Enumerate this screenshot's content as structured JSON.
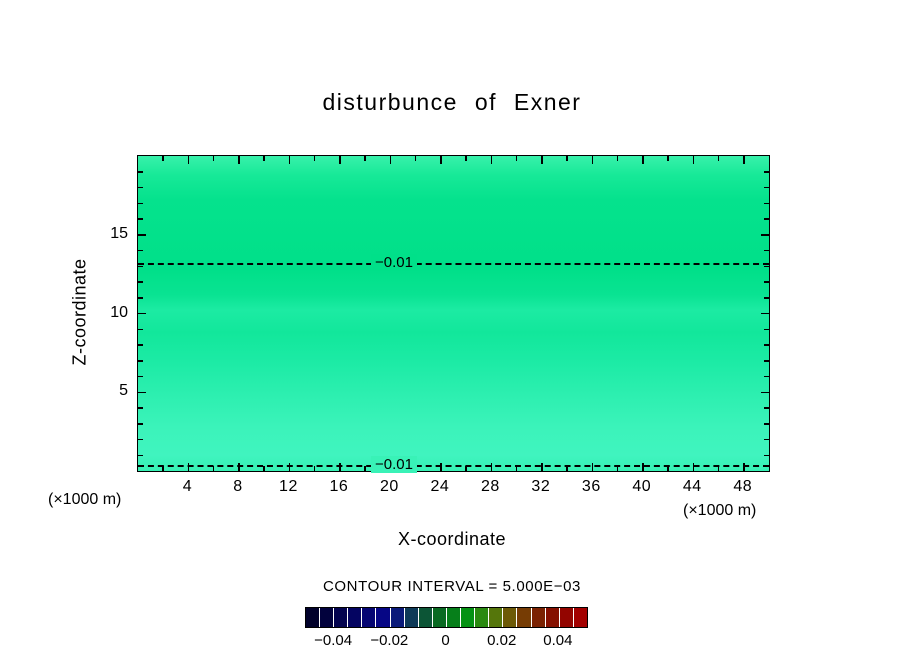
{
  "title": "disturbunce of Exner",
  "plot": {
    "x_axis": {
      "label": "X-coordinate",
      "unit": "(×1000 m)",
      "major_ticks": [
        4,
        8,
        12,
        16,
        20,
        24,
        28,
        32,
        36,
        40,
        44,
        48
      ],
      "minor_step": 2,
      "range": [
        0,
        50
      ]
    },
    "y_axis": {
      "label": "Z-coordinate",
      "unit": "(×1000 m)",
      "major_ticks": [
        5,
        10,
        15
      ],
      "minor_step": 1,
      "range": [
        0,
        20
      ]
    },
    "contour_lines": [
      {
        "label": "−0.01",
        "z": 13.2
      },
      {
        "label": "−0.01",
        "z": 0.4
      }
    ]
  },
  "footer": {
    "contour_interval_text": "CONTOUR INTERVAL = 5.000E−03"
  },
  "colorbar": {
    "tick_labels": [
      "−0.04",
      "−0.02",
      "0",
      "0.02",
      "0.04"
    ],
    "tick_values": [
      -0.04,
      -0.02,
      0,
      0.02,
      0.04
    ],
    "range": [
      -0.05,
      0.05
    ],
    "cell_colors": [
      "#01012b",
      "#02023d",
      "#03034f",
      "#040461",
      "#050573",
      "#060685",
      "#0a1a7a",
      "#0e3a58",
      "#0c5536",
      "#096a22",
      "#067f1a",
      "#049213",
      "#2a8a10",
      "#55760b",
      "#6d5a07",
      "#763c04",
      "#7b2202",
      "#851000",
      "#930500",
      "#a30000"
    ]
  },
  "chart_data": {
    "type": "heatmap",
    "title": "disturbunce of Exner",
    "xlabel": "X-coordinate (×1000 m)",
    "ylabel": "Z-coordinate (×1000 m)",
    "xlim": [
      0,
      50
    ],
    "ylim": [
      0,
      20
    ],
    "x_ticks": [
      4,
      8,
      12,
      16,
      20,
      24,
      28,
      32,
      36,
      40,
      44,
      48
    ],
    "y_ticks": [
      5,
      10,
      15
    ],
    "contour_interval": 0.005,
    "contour_lines": [
      {
        "value": -0.01,
        "orientation": "horizontal",
        "z": 13.2
      },
      {
        "value": -0.01,
        "orientation": "horizontal",
        "z": 0.4
      }
    ],
    "field_summary": "Nearly horizontally uniform negative Exner-function perturbation (~ −0.015 to −0.005, light spring-green fill) across the whole domain, with subtle horizontal banding and −0.01 contour lines near z = 13.2 and z = 0.4 (×1000 m)",
    "colorbar": {
      "min": -0.05,
      "max": 0.05,
      "n_cells": 20,
      "tick_labels": [
        -0.04,
        -0.02,
        0,
        0.02,
        0.04
      ]
    }
  }
}
